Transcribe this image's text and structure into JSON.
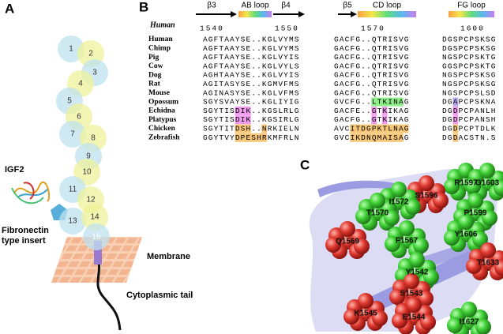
{
  "panel_labels": [
    "A",
    "B",
    "C"
  ],
  "panel_a": {
    "domains": [
      "1",
      "2",
      "3",
      "4",
      "5",
      "6",
      "7",
      "8",
      "9",
      "10",
      "11",
      "12",
      "13",
      "14",
      "15"
    ],
    "labels": {
      "igf2": "IGF2",
      "insert": "Fibronectin type insert",
      "membrane": "Membrane",
      "tail": "Cytoplasmic tail"
    }
  },
  "panel_b": {
    "reference": "Human",
    "structure": [
      "β3",
      "AB loop",
      "β4",
      "β5",
      "CD loop",
      "FG loop"
    ],
    "positions": [
      1540,
      1550,
      1570,
      1600
    ],
    "rows": [
      {
        "species": "Human",
        "seq": [
          "AGFTAAYSE..KGLVYMS",
          "GACFG..QTRISVG",
          "DGSPCPSKSG"
        ]
      },
      {
        "species": "Chimp",
        "seq": [
          "AGFTAAYSE..KGLVYMS",
          "GACFG..QTRISVG",
          "DGSPCPSKSG"
        ]
      },
      {
        "species": "Pig",
        "seq": [
          "AGFTAAYSE..KGLVYIS",
          "GACFG..QTRISVG",
          "NGSPCPSKTG"
        ]
      },
      {
        "species": "Cow",
        "seq": [
          "AGFTAAYSE..KGLVYLS",
          "GACFG..QTRISVG",
          "GGSPCPSKTG"
        ]
      },
      {
        "species": "Dog",
        "seq": [
          "AGHTAAYSE..KGLVYIS",
          "GACFG..QTRISVG",
          "NGSPCPSKSG"
        ]
      },
      {
        "species": "Rat",
        "seq": [
          "AGITASYSE..KGMVFMS",
          "GACFG..QTRISVG",
          "NGSPCPSKSG"
        ]
      },
      {
        "species": "Mouse",
        "seq": [
          "AGINASYSE..KGLVFMS",
          "GACFG..QTRISVG",
          "NGSPCPSLSD"
        ]
      },
      {
        "species": "Opossum",
        "seq": [
          "SGYSVAYSE..KGLIYIG",
          "GVCFG..LTKINAG",
          "DGAPCPSKNA"
        ]
      },
      {
        "species": "Echidna",
        "seq": [
          "SGYTISDIK..KGSLRLG",
          "GACFE..GTKIKAG",
          "DGDPCPANLH"
        ]
      },
      {
        "species": "Platypus",
        "seq": [
          "SGYTISDIK..KGSIRLG",
          "GACFG..GTKIKAG",
          "DGDPCPANSH"
        ]
      },
      {
        "species": "Chicken",
        "seq": [
          "SGYTITDSH..NRKIELN",
          "AVCITDGPKTLNAG",
          "DGDPCPTDLK"
        ]
      },
      {
        "species": "Zebrafish",
        "seq": [
          "GGYTVYDPESHRKMFRLN",
          "GVCIKDNQMAISAG",
          "DGDACSTN.S"
        ]
      }
    ]
  },
  "panel_c": {
    "residues": [
      {
        "label": "R1597",
        "color": "green"
      },
      {
        "label": "G1603",
        "color": "green"
      },
      {
        "label": "S1596",
        "color": "red"
      },
      {
        "label": "I1572",
        "color": "green"
      },
      {
        "label": "T1570",
        "color": "green"
      },
      {
        "label": "P1599",
        "color": "green"
      },
      {
        "label": "Q1569",
        "color": "red"
      },
      {
        "label": "F1567",
        "color": "green"
      },
      {
        "label": "Y1606",
        "color": "green"
      },
      {
        "label": "T1633",
        "color": "red"
      },
      {
        "label": "Y1542",
        "color": "green"
      },
      {
        "label": "S1543",
        "color": "red"
      },
      {
        "label": "K1545",
        "color": "red"
      },
      {
        "label": "E1544",
        "color": "red"
      },
      {
        "label": "I1627",
        "color": "green"
      }
    ]
  }
}
